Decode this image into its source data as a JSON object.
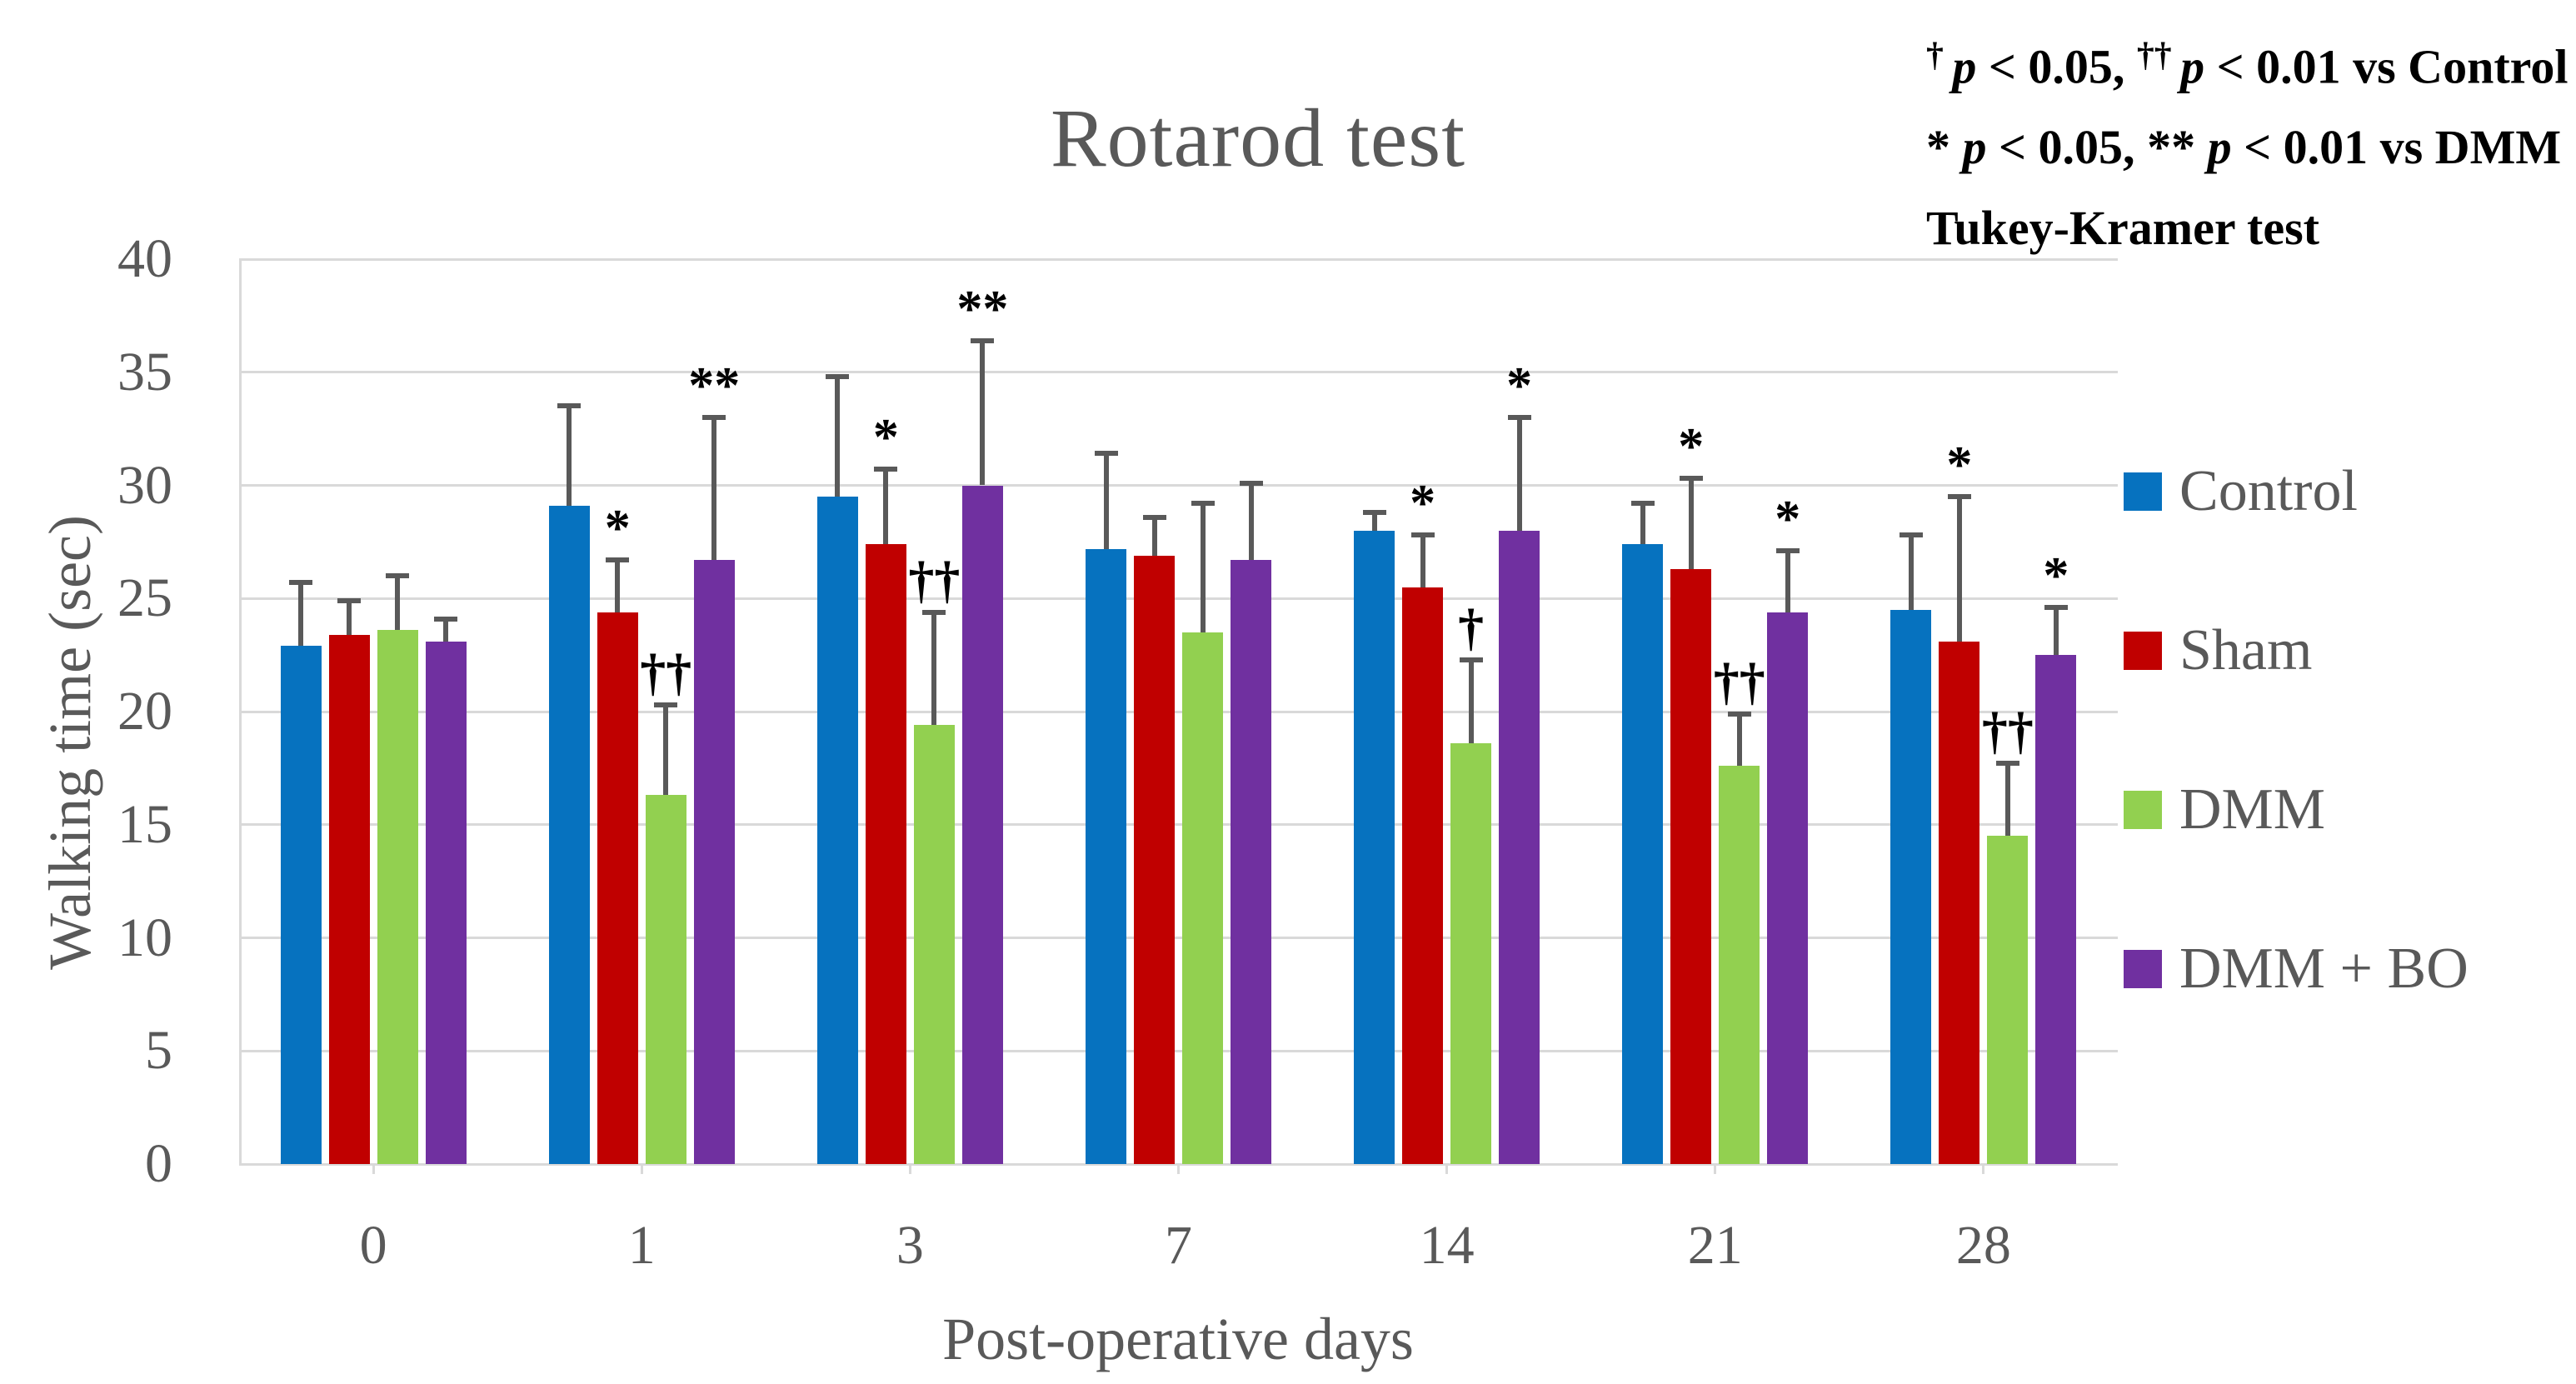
{
  "chart_data": {
    "type": "bar",
    "title": "Rotarod test",
    "xlabel": "Post-operative days",
    "ylabel": "Walking time (sec)",
    "ylim": [
      0,
      40
    ],
    "yticks": [
      0,
      5,
      10,
      15,
      20,
      25,
      30,
      35,
      40
    ],
    "grid": true,
    "error_bars": "upper",
    "legend_position": "right",
    "categories": [
      "0",
      "1",
      "3",
      "7",
      "14",
      "21",
      "28"
    ],
    "series": [
      {
        "name": "Control",
        "color": "#0672bf",
        "values": [
          22.9,
          29.1,
          29.5,
          27.2,
          28.0,
          27.4,
          24.5
        ],
        "errors": [
          2.8,
          4.4,
          5.3,
          4.2,
          0.8,
          1.8,
          3.3
        ],
        "annotations": [
          "",
          "",
          "",
          "",
          "",
          "",
          ""
        ]
      },
      {
        "name": "Sham",
        "color": "#c00000",
        "values": [
          23.4,
          24.4,
          27.4,
          26.9,
          25.5,
          26.3,
          23.1
        ],
        "errors": [
          1.5,
          2.3,
          3.3,
          1.7,
          2.3,
          4.0,
          6.4
        ],
        "annotations": [
          "",
          "*",
          "*",
          "",
          "*",
          "*",
          "*"
        ]
      },
      {
        "name": "DMM",
        "color": "#92d050",
        "values": [
          23.6,
          16.3,
          19.4,
          23.5,
          18.6,
          17.6,
          14.5
        ],
        "errors": [
          2.4,
          4.0,
          5.0,
          5.7,
          3.7,
          2.3,
          3.2
        ],
        "annotations": [
          "",
          "††",
          "††",
          "",
          "†",
          "††",
          "††"
        ]
      },
      {
        "name": "DMM + BO",
        "color": "#7030a0",
        "values": [
          23.1,
          26.7,
          30.0,
          26.7,
          28.0,
          24.4,
          22.5
        ],
        "errors": [
          1.0,
          6.3,
          6.4,
          3.4,
          5.0,
          2.7,
          2.1
        ],
        "annotations": [
          "",
          "**",
          "**",
          "",
          "*",
          "*",
          "*"
        ]
      }
    ],
    "colors": {
      "error_bar": "#595959",
      "gridline": "#d9d9d9",
      "axis_text": "#595959",
      "annotation": "#000000"
    }
  },
  "notes": {
    "lines": [
      {
        "sym1": "† ",
        "p1": "p",
        "t1": " < 0.05, ",
        "sym2": "†† ",
        "p2": "p",
        "t2": " < 0.01 vs Control"
      },
      {
        "sym1": "* ",
        "p1": "p",
        "t1": " < 0.05, ",
        "sym2": "** ",
        "p2": "p",
        "t2": " < 0.01 vs DMM"
      },
      {
        "text": "Tukey-Kramer test"
      }
    ]
  }
}
